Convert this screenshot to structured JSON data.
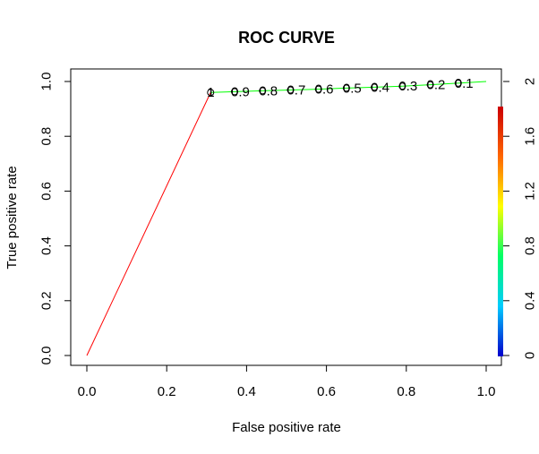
{
  "chart_data": {
    "type": "line",
    "title": "ROC CURVE",
    "xlabel": "False positive rate",
    "ylabel": "True positive rate",
    "xlim": [
      0,
      1
    ],
    "ylim": [
      0,
      1
    ],
    "x_ticks": [
      "0.0",
      "0.2",
      "0.4",
      "0.6",
      "0.8",
      "1.0"
    ],
    "y_ticks": [
      "0.0",
      "0.2",
      "0.4",
      "0.6",
      "0.8",
      "1.0"
    ],
    "grid": false,
    "series": [
      {
        "points": [
          {
            "x": 0.0,
            "y": 0.0,
            "color": "#ff0000"
          },
          {
            "x": 0.31,
            "y": 0.96,
            "color": "#00ff00"
          },
          {
            "x": 0.37,
            "y": 0.963,
            "color": "#00ff00"
          },
          {
            "x": 0.44,
            "y": 0.966,
            "color": "#00ff00"
          },
          {
            "x": 0.51,
            "y": 0.969,
            "color": "#00ff00"
          },
          {
            "x": 0.58,
            "y": 0.972,
            "color": "#00ff00"
          },
          {
            "x": 0.65,
            "y": 0.976,
            "color": "#00ff00"
          },
          {
            "x": 0.72,
            "y": 0.979,
            "color": "#00ff00"
          },
          {
            "x": 0.79,
            "y": 0.983,
            "color": "#00ff00"
          },
          {
            "x": 0.86,
            "y": 0.988,
            "color": "#00ff00"
          },
          {
            "x": 0.93,
            "y": 0.994,
            "color": "#00ff00"
          },
          {
            "x": 1.0,
            "y": 1.0,
            "color": "#00ff00"
          }
        ]
      }
    ],
    "cutoff_labels": [
      {
        "text": "1",
        "x": 0.31,
        "y": 0.96
      },
      {
        "text": "0.9",
        "x": 0.37,
        "y": 0.963
      },
      {
        "text": "0.8",
        "x": 0.44,
        "y": 0.966
      },
      {
        "text": "0.7",
        "x": 0.51,
        "y": 0.969
      },
      {
        "text": "0.6",
        "x": 0.58,
        "y": 0.972
      },
      {
        "text": "0.5",
        "x": 0.65,
        "y": 0.976
      },
      {
        "text": "0.4",
        "x": 0.72,
        "y": 0.979
      },
      {
        "text": "0.3",
        "x": 0.79,
        "y": 0.983
      },
      {
        "text": "0.2",
        "x": 0.86,
        "y": 0.988
      },
      {
        "text": "0.1",
        "x": 0.93,
        "y": 0.994
      }
    ],
    "colorbar": {
      "range": [
        0,
        2
      ],
      "ticks": [
        "0",
        "0.4",
        "0.8",
        "1.2",
        "1.6",
        "2"
      ],
      "placement": "right",
      "gradient": [
        "#0000cc",
        "#00ccff",
        "#00ff66",
        "#ffff00",
        "#ff6600",
        "#cc0000"
      ]
    }
  }
}
